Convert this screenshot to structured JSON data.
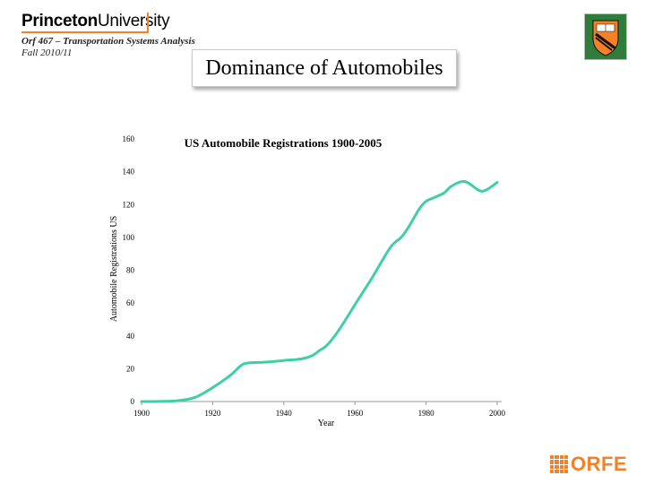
{
  "header": {
    "logo_word_1": "Princeton",
    "logo_word_2": "University",
    "course": "Orf 467 – Transportation Systems Analysis",
    "term": "Fall 2010/11",
    "slide_title": "Dominance of Automobiles",
    "footer_logo_text": "ORFE"
  },
  "colors": {
    "line": "#3ecfa8",
    "axis": "#999999",
    "accent_orange": "#f58025"
  },
  "chart_data": {
    "type": "line",
    "title": "US Automobile Registrations 1900-2005",
    "xlabel": "Year",
    "ylabel": "Automobile Registrations US",
    "xlim": [
      1900,
      2000
    ],
    "ylim": [
      0,
      160
    ],
    "xticks": [
      "1900",
      "1920",
      "1940",
      "1960",
      "1980",
      "2000"
    ],
    "yticks": [
      "0",
      "20",
      "40",
      "60",
      "80",
      "100",
      "120",
      "140",
      "160"
    ],
    "grid": false,
    "legend": "none",
    "series": [
      {
        "x": [
          1900,
          1905,
          1910,
          1915,
          1920,
          1925,
          1928,
          1930,
          1935,
          1940,
          1945,
          1948,
          1950,
          1952,
          1955,
          1958,
          1960,
          1965,
          1970,
          1973,
          1975,
          1978,
          1980,
          1982,
          1985,
          1987,
          1990,
          1992,
          1995,
          1997,
          2000
        ],
        "y": [
          0,
          0.1,
          0.5,
          2.5,
          8.5,
          16,
          22,
          23.5,
          24,
          25,
          26,
          28,
          31,
          34,
          42,
          52,
          59,
          76,
          94,
          100,
          106,
          117,
          122,
          124,
          127,
          131,
          134,
          133,
          128.5,
          129,
          133.5
        ]
      }
    ]
  }
}
